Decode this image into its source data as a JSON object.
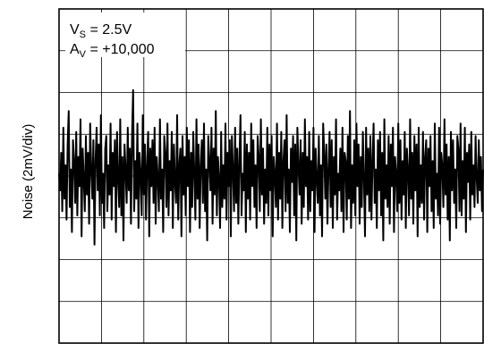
{
  "chart_data": {
    "type": "line",
    "ylabel": "Noise (2mV/div)",
    "xlabel": "",
    "grid": true,
    "x_divisions": 10,
    "y_divisions": 8,
    "annotation": {
      "line1_main": "V",
      "line1_sub": "S",
      "line1_rest": " = 2.5V",
      "line2_main": "A",
      "line2_sub": "V",
      "line2_rest": " = +10,000"
    },
    "series": [
      {
        "color": "#000000",
        "values": [
          0.1,
          -0.3,
          0.6,
          -0.8,
          1.2,
          -0.5,
          0.3,
          -1.0,
          0.8,
          1.6,
          -0.7,
          0.2,
          -1.3,
          0.9,
          0.4,
          -0.6,
          1.1,
          -0.9,
          0.5,
          -0.2,
          1.4,
          -1.4,
          0.7,
          0.0,
          -0.8,
          1.0,
          -0.4,
          0.6,
          -1.1,
          1.3,
          0.2,
          -0.5,
          0.9,
          -1.6,
          0.4,
          1.2,
          -0.3,
          0.8,
          -0.9,
          1.5,
          -0.6,
          0.1,
          -1.2,
          0.7,
          1.0,
          -0.8,
          0.3,
          -0.4,
          1.3,
          -1.0,
          0.6,
          -0.2,
          0.9,
          -1.3,
          1.1,
          0.0,
          -0.7,
          1.4,
          -0.9,
          0.5,
          -1.5,
          0.8,
          0.2,
          -0.6,
          1.2,
          -0.3,
          0.7,
          -1.1,
          1.0,
          2.1,
          -0.8,
          0.4,
          -0.5,
          1.3,
          -1.2,
          0.6,
          0.1,
          -0.9,
          1.5,
          -0.4,
          0.8,
          -1.0,
          0.3,
          1.1,
          -1.4,
          0.7,
          -0.2,
          0.9,
          -0.6,
          1.2,
          -1.1,
          0.5,
          0.0,
          -0.8,
          1.4,
          -0.5,
          0.2,
          -1.3,
          1.0,
          0.6,
          -0.7,
          1.3,
          -0.9,
          0.4,
          -0.3,
          1.1,
          -1.2,
          0.8,
          -0.1,
          -0.6,
          1.5,
          -1.0,
          0.3,
          0.7,
          -1.4,
          1.0,
          -0.4,
          0.5,
          -0.9,
          1.2,
          -0.2,
          0.9,
          -1.3,
          0.6,
          -0.7,
          1.1,
          0.1,
          -1.0,
          1.4,
          -0.5,
          0.8,
          -1.2,
          0.3,
          0.9,
          -0.6,
          1.3,
          -0.8,
          0.2,
          -1.5,
          1.0,
          0.4,
          -0.3,
          1.2,
          -1.1,
          0.7,
          -0.4,
          1.6,
          -0.9,
          0.5,
          0.0,
          -1.2,
          1.1,
          -0.7,
          0.3,
          -0.5,
          1.3,
          -1.0,
          0.6,
          -0.2,
          0.9,
          -1.4,
          1.0,
          0.2,
          -0.8,
          1.2,
          -0.6,
          0.7,
          -1.1,
          0.4,
          1.5,
          -0.9,
          0.1,
          -0.3,
          1.1,
          -1.3,
          0.8,
          -0.5,
          0.6,
          -1.0,
          1.3,
          -0.2,
          0.9,
          -0.7,
          0.3,
          -1.2,
          1.0,
          0.5,
          -0.8,
          1.4,
          -0.4,
          0.7,
          -1.1,
          0.2,
          -0.6,
          1.2,
          -0.9,
          0.8,
          -0.3,
          1.0,
          -1.4,
          0.5,
          0.1,
          -0.7,
          1.3,
          -1.0,
          0.6,
          -0.5,
          1.1,
          -1.2,
          0.4,
          0.9,
          -0.8,
          1.5,
          -0.6,
          0.2,
          -1.3,
          0.7,
          -0.1,
          1.0,
          -0.9,
          0.8,
          -1.5,
          1.2,
          0.3,
          -0.4,
          0.9,
          -1.1,
          0.6,
          -0.7,
          1.4,
          -0.2,
          0.5,
          -1.0,
          1.1,
          -0.8,
          0.4,
          -0.3,
          1.2,
          -1.3,
          0.7,
          0.0,
          -0.6,
          1.0,
          -0.9,
          0.3,
          -1.4,
          1.3,
          0.6,
          -0.5,
          0.8,
          -1.1,
          0.2,
          1.1,
          -0.7,
          0.9,
          -1.2,
          0.5,
          -0.4,
          1.4,
          -1.0,
          0.1,
          -0.3,
          0.7,
          -0.8,
          1.2,
          -1.3,
          0.6,
          0.4,
          -1.0,
          1.0,
          -0.5,
          1.6,
          -1.2,
          0.3,
          -0.6,
          0.9,
          -0.9,
          1.3,
          -0.2,
          0.8,
          -1.1,
          0.5,
          -0.7,
          1.1,
          0.0,
          -1.4,
          1.2,
          -0.4,
          0.7,
          -0.8,
          1.0,
          -1.0,
          0.4,
          1.3,
          -0.6,
          0.2,
          -1.2,
          0.9,
          -0.3,
          1.1,
          -0.9,
          0.6,
          -1.5,
          1.4,
          -0.5,
          0.3,
          -0.7,
          1.0,
          -1.1,
          0.8,
          -0.2,
          1.2,
          -1.3,
          0.5,
          0.1,
          -0.8,
          1.3,
          -0.6,
          0.9,
          -1.0,
          0.4,
          -0.4,
          1.1,
          -1.2,
          0.7,
          0.2,
          -0.9,
          1.4,
          -0.5,
          0.6,
          -1.1,
          1.0,
          -0.3,
          0.8,
          -1.4,
          1.2,
          -0.7,
          0.3,
          -0.6,
          1.1,
          -1.0,
          0.5,
          0.9,
          -1.3,
          0.7,
          -0.2,
          1.0,
          -0.8,
          0.4,
          -1.2,
          1.3,
          -0.5,
          0.1,
          -0.9,
          1.2,
          -1.1,
          0.6,
          0.3,
          -0.7,
          1.4,
          -0.4,
          0.8,
          -1.0,
          0.5,
          -1.5,
          1.1,
          -0.3,
          0.9,
          -0.6,
          0.2,
          -1.2,
          1.0,
          0.7,
          -0.8,
          1.3,
          -0.9,
          0.4,
          -0.5,
          1.2,
          -1.3,
          0.6,
          -0.1,
          0.8,
          -1.0,
          1.1,
          -0.4,
          0.3,
          -0.7,
          1.0,
          0.0,
          -0.6,
          0.9,
          -0.3,
          0.5,
          -0.8,
          0.2
        ]
      }
    ]
  }
}
